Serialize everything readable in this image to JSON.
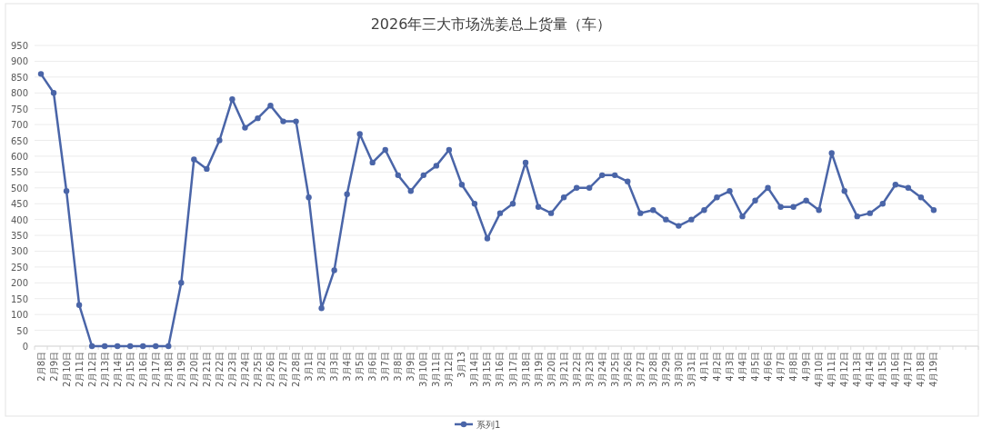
{
  "chart_data": {
    "type": "line",
    "title": "2026年三大市场洗姜总上货量（车）",
    "categories": [
      "2月8日",
      "2月9日",
      "2月10日",
      "2月11日",
      "2月12日",
      "2月13日",
      "2月14日",
      "2月15日",
      "2月16日",
      "2月17日",
      "2月18日",
      "2月19日",
      "2月20日",
      "2月21日",
      "2月22日",
      "2月23日",
      "2月24日",
      "2月25日",
      "2月26日",
      "2月27日",
      "2月28日",
      "3月1日",
      "3月2日",
      "3月3日",
      "3月4日",
      "3月5日",
      "3月6日",
      "3月7日",
      "3月8日",
      "3月9日",
      "3月10日",
      "3月11日",
      "3月12日",
      "3月13",
      "3月14日",
      "3月15日",
      "3月16日",
      "3月17日",
      "3月18日",
      "3月19日",
      "3月20日",
      "3月21日",
      "3月22日",
      "3月23日",
      "3月24日",
      "3月25日",
      "3月26日",
      "3月27日",
      "3月28日",
      "3月29日",
      "3月30日",
      "3月31日",
      "4月1日",
      "4月2日",
      "4月3日",
      "4月4日",
      "4月5日",
      "4月6日",
      "4月7日",
      "4月8日",
      "4月9日",
      "4月10日",
      "4月11日",
      "4月12日",
      "4月13日",
      "4月14日",
      "4月15日",
      "4月16日",
      "4月17日",
      "4月18日",
      "4月19日",
      null,
      null,
      null
    ],
    "series": [
      {
        "name": "系列1",
        "color": "#4a65a8",
        "values": [
          860,
          800,
          490,
          130,
          0,
          0,
          0,
          0,
          0,
          0,
          0,
          200,
          590,
          560,
          650,
          780,
          690,
          720,
          760,
          710,
          710,
          470,
          120,
          240,
          480,
          670,
          580,
          620,
          540,
          490,
          540,
          570,
          620,
          510,
          450,
          340,
          420,
          450,
          580,
          440,
          420,
          470,
          500,
          500,
          540,
          540,
          520,
          420,
          430,
          400,
          380,
          400,
          430,
          470,
          490,
          410,
          460,
          500,
          440,
          440,
          460,
          430,
          610,
          490,
          410,
          420,
          450,
          510,
          500,
          470,
          430,
          null,
          null,
          null
        ]
      }
    ],
    "ylim": [
      0,
      950
    ],
    "yticks": [
      0,
      50,
      100,
      150,
      200,
      250,
      300,
      350,
      400,
      450,
      500,
      550,
      600,
      650,
      700,
      750,
      800,
      850,
      900,
      950
    ],
    "grid": "y",
    "legend": "bottom",
    "marker": "circle"
  }
}
